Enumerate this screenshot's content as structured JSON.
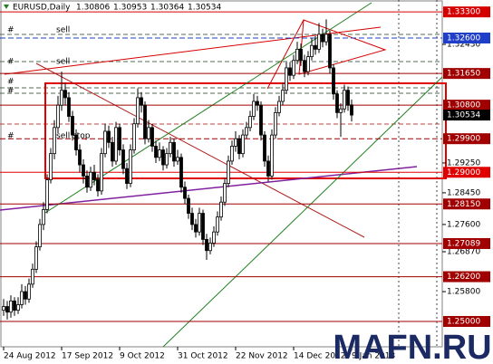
{
  "chart_data": {
    "type": "candlestick",
    "symbol": "EURUSD,Daily",
    "open": [
      1.253,
      1.254,
      1.2525,
      1.2555,
      1.253,
      1.2545,
      1.258,
      1.256,
      1.26,
      1.264,
      1.27,
      1.276,
      1.28,
      1.288,
      1.295,
      1.302,
      1.308,
      1.312,
      1.31,
      1.305,
      1.3,
      1.296,
      1.292,
      1.289,
      1.286,
      1.29,
      1.288,
      1.285,
      1.295,
      1.301,
      1.298,
      1.293,
      1.302,
      1.296,
      1.291,
      1.287,
      1.296,
      1.303,
      1.31,
      1.308,
      1.299,
      1.302,
      1.297,
      1.294,
      1.296,
      1.292,
      1.295,
      1.298,
      1.293,
      1.294,
      1.286,
      1.283,
      1.279,
      1.276,
      1.274,
      1.279,
      1.272,
      1.269,
      1.271,
      1.274,
      1.278,
      1.282,
      1.287,
      1.293,
      1.297,
      1.299,
      1.295,
      1.3,
      1.302,
      1.305,
      1.309,
      1.308,
      1.3,
      1.293,
      1.289,
      1.3,
      1.306,
      1.309,
      1.312,
      1.318,
      1.316,
      1.32,
      1.323,
      1.32,
      1.317,
      1.321,
      1.324,
      1.323,
      1.327,
      1.325,
      1.327,
      1.318,
      1.311,
      1.306,
      1.307,
      1.312,
      1.30806
    ],
    "high": [
      1.256,
      1.2555,
      1.257,
      1.2565,
      1.2565,
      1.26,
      1.2595,
      1.2615,
      1.2655,
      1.2715,
      1.2775,
      1.282,
      1.2895,
      1.2965,
      1.304,
      1.3105,
      1.317,
      1.314,
      1.3115,
      1.3065,
      1.3015,
      1.2975,
      1.2935,
      1.2905,
      1.2915,
      1.292,
      1.2895,
      1.2965,
      1.303,
      1.3025,
      1.2995,
      1.3035,
      1.303,
      1.2975,
      1.2925,
      1.2975,
      1.3045,
      1.3125,
      1.3115,
      1.309,
      1.304,
      1.303,
      1.2985,
      1.298,
      1.297,
      1.2965,
      1.2995,
      1.299,
      1.296,
      1.295,
      1.2875,
      1.284,
      1.2805,
      1.2775,
      1.2805,
      1.28,
      1.2735,
      1.2725,
      1.2755,
      1.2795,
      1.2835,
      1.2885,
      1.2945,
      1.2985,
      1.301,
      1.3,
      1.3015,
      1.3035,
      1.3065,
      1.311,
      1.3105,
      1.309,
      1.301,
      1.2945,
      1.3015,
      1.3075,
      1.3105,
      1.314,
      1.3195,
      1.3195,
      1.3215,
      1.325,
      1.3245,
      1.3215,
      1.3225,
      1.326,
      1.3265,
      1.33,
      1.3285,
      1.331,
      1.328,
      1.319,
      1.312,
      1.3085,
      1.3135,
      1.313,
      1.30953
    ],
    "low": [
      1.2515,
      1.2505,
      1.251,
      1.2515,
      1.252,
      1.2535,
      1.2545,
      1.255,
      1.259,
      1.263,
      1.269,
      1.2745,
      1.279,
      1.287,
      1.2935,
      1.3005,
      1.3065,
      1.308,
      1.3035,
      1.2985,
      1.2945,
      1.29,
      1.287,
      1.2845,
      1.285,
      1.2865,
      1.2835,
      1.284,
      1.294,
      1.2965,
      1.2915,
      1.292,
      1.2945,
      1.2895,
      1.2855,
      1.286,
      1.295,
      1.302,
      1.306,
      1.2975,
      1.298,
      1.2955,
      1.2925,
      1.293,
      1.2905,
      1.291,
      1.294,
      1.2915,
      1.292,
      1.2845,
      1.2815,
      1.2775,
      1.2745,
      1.2725,
      1.273,
      1.2705,
      1.2665,
      1.268,
      1.27,
      1.273,
      1.277,
      1.281,
      1.286,
      1.292,
      1.2955,
      1.2935,
      1.294,
      1.299,
      1.301,
      1.304,
      1.3065,
      1.2985,
      1.2915,
      1.2875,
      1.288,
      1.299,
      1.305,
      1.308,
      1.311,
      1.3145,
      1.315,
      1.319,
      1.3185,
      1.3155,
      1.316,
      1.32,
      1.3215,
      1.322,
      1.3235,
      1.324,
      1.3165,
      1.3095,
      1.3045,
      1.2995,
      1.306,
      1.3065,
      1.30364
    ],
    "close": [
      1.254,
      1.2525,
      1.2555,
      1.253,
      1.2545,
      1.258,
      1.256,
      1.26,
      1.264,
      1.27,
      1.276,
      1.28,
      1.288,
      1.295,
      1.302,
      1.308,
      1.312,
      1.31,
      1.305,
      1.3,
      1.296,
      1.292,
      1.289,
      1.286,
      1.29,
      1.288,
      1.285,
      1.295,
      1.301,
      1.298,
      1.293,
      1.302,
      1.296,
      1.291,
      1.287,
      1.296,
      1.303,
      1.31,
      1.308,
      1.299,
      1.302,
      1.297,
      1.294,
      1.296,
      1.292,
      1.295,
      1.298,
      1.293,
      1.294,
      1.286,
      1.283,
      1.279,
      1.276,
      1.274,
      1.279,
      1.272,
      1.269,
      1.271,
      1.274,
      1.278,
      1.282,
      1.287,
      1.293,
      1.297,
      1.299,
      1.295,
      1.3,
      1.302,
      1.305,
      1.309,
      1.308,
      1.3,
      1.293,
      1.289,
      1.3,
      1.306,
      1.309,
      1.312,
      1.318,
      1.316,
      1.32,
      1.323,
      1.32,
      1.317,
      1.321,
      1.324,
      1.323,
      1.327,
      1.325,
      1.327,
      1.318,
      1.311,
      1.306,
      1.307,
      1.312,
      1.308,
      1.30534
    ],
    "up_color": "#ffffff",
    "down_color": "#000000",
    "wick_color": "#000000",
    "xlim": [
      -1,
      121
    ],
    "xticks": [
      {
        "value": 0,
        "label": "24 Aug 2012"
      },
      {
        "value": 16,
        "label": "17 Sep 2012"
      },
      {
        "value": 32,
        "label": "9 Oct 2012"
      },
      {
        "value": 48,
        "label": "31 Oct 2012"
      },
      {
        "value": 64,
        "label": "22 Nov 2012"
      },
      {
        "value": 80,
        "label": "14 Dec 2012"
      },
      {
        "value": 96,
        "label": "9 Jan 2013"
      }
    ],
    "ylim": [
      1.2432,
      1.3362
    ],
    "yticks": [
      {
        "value": 1.3243,
        "label": "1.32430"
      },
      {
        "value": 1.2925,
        "label": "1.29250"
      },
      {
        "value": 1.2845,
        "label": "1.28450"
      },
      {
        "value": 1.276,
        "label": "1.27600"
      },
      {
        "value": 1.2687,
        "label": "1.26870"
      },
      {
        "value": 1.258,
        "label": "1.25800"
      }
    ],
    "levels": [
      {
        "value": 1.333,
        "label": "1.33300",
        "color": "#d40000",
        "dash": false
      },
      {
        "value": 1.326,
        "label": "1.32600",
        "color": "#1f3fc8",
        "dash": true
      },
      {
        "value": 1.3165,
        "label": "1.31650",
        "color": "#a00000",
        "dash": false
      },
      {
        "value": 1.308,
        "label": "1.30800",
        "color": "#a00000",
        "dash": false
      },
      {
        "value": 1.299,
        "label": "1.29900",
        "color": "#a00000",
        "dash": true
      },
      {
        "value": 1.29,
        "label": "1.29000",
        "color": "#e00000",
        "dash": false
      },
      {
        "value": 1.2815,
        "label": "1.28150",
        "color": "#a00000",
        "dash": false
      },
      {
        "value": 1.27089,
        "color": "#a00000",
        "dash": false
      },
      {
        "value": 1.262,
        "label": "1.26200",
        "color": "#a00000",
        "dash": false
      },
      {
        "value": 1.25,
        "label": "1.25000",
        "color": "#a00000",
        "dash": false
      }
    ],
    "annotations": [
      "#",
      "sell",
      "#",
      "sell",
      "#",
      "#",
      "#",
      "sell stop"
    ],
    "watermark": "MAFN.RU"
  }
}
